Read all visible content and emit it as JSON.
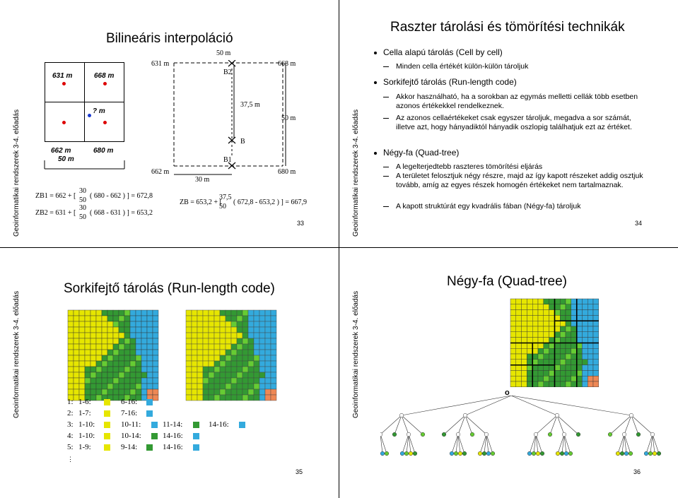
{
  "side_label": "Geoinformatikai rendszerek 3-4. előadás",
  "colors": {
    "yellow": "#e6e600",
    "light_green": "#66cc33",
    "dark_green": "#339933",
    "blue": "#33aadd",
    "orange": "#ee8855",
    "red": "#dd0000"
  },
  "slide33": {
    "title": "Bilineáris interpoláció",
    "page": "33",
    "cells": {
      "tl": "631 m",
      "tr": "668 m",
      "bl": "662 m",
      "br": "680 m",
      "unknown": "? m",
      "scale": "50 m"
    },
    "diagram": {
      "tl": "631 m",
      "tr": "668 m",
      "bl": "662 m",
      "br": "680 m",
      "top": "50 m",
      "bottom": "30 m",
      "right": "50 m",
      "mid": "37,5 m",
      "b2": "B2",
      "b1": "B1",
      "b": "B"
    },
    "formulas": {
      "zb1_left": "ZB1 = 662 + [",
      "zb1_frac_top": "30",
      "zb1_frac_bot": "50",
      "zb1_right": "( 680 - 662 ) ] = 672,8",
      "zb2_left": "ZB2 = 631 + [",
      "zb2_frac_top": "30",
      "zb2_frac_bot": "50",
      "zb2_right": "( 668 - 631 ) ] = 653,2",
      "zb_left": "ZB = 653,2 + [",
      "zb_frac_top": "37,5",
      "zb_frac_bot": "50",
      "zb_right": "( 672,8 - 653,2 ) ] = 667,9"
    }
  },
  "slide34": {
    "title": "Raszter tárolási és tömörítési technikák",
    "page": "34",
    "b1": "Cella alapú tárolás (Cell by cell)",
    "b1s1": "Minden cella értékét külön-külön tároljuk",
    "b2": "Sorkifejtő tárolás (Run-length code)",
    "b2s1": "Akkor használható, ha a sorokban az egymás melletti cellák több esetben azonos értékekkel rendelkeznek.",
    "b2s2": "Az azonos cellaértékeket csak egyszer tároljuk, megadva a sor számát, illetve azt, hogy hányadiktól hányadik oszlopig találhatjuk ezt az értéket.",
    "b3": "Négy-fa (Quad-tree)",
    "b3s1": "A legelterjedtebb raszteres tömörítési eljárás",
    "b3s2": "A területet felosztjuk négy részre, majd az így kapott részeket addig osztjuk tovább, amíg az egyes részek homogén értékeket nem tartalmaznak.",
    "b3s3": "A kapott struktúrát egy kvadrális fában (Négy-fa) tároljuk"
  },
  "slide35": {
    "title": "Sorkifejtő tárolás (Run-length code)",
    "page": "35",
    "rows": [
      [
        "1:",
        "1-6:",
        "6-16:",
        "",
        ""
      ],
      [
        "2:",
        "1-7:",
        "7-16:",
        "",
        ""
      ],
      [
        "3:",
        "1-10:",
        "10-11:",
        "11-14:",
        "14-16:"
      ],
      [
        "4:",
        "1-10:",
        "10-14:",
        "14-16:",
        ""
      ],
      [
        "5:",
        "1-9:",
        "9-14:",
        "14-16:",
        ""
      ]
    ],
    "ellipsis": "⋮"
  },
  "slide36": {
    "title": "Négy-fa (Quad-tree)",
    "page": "36",
    "root": "o"
  }
}
